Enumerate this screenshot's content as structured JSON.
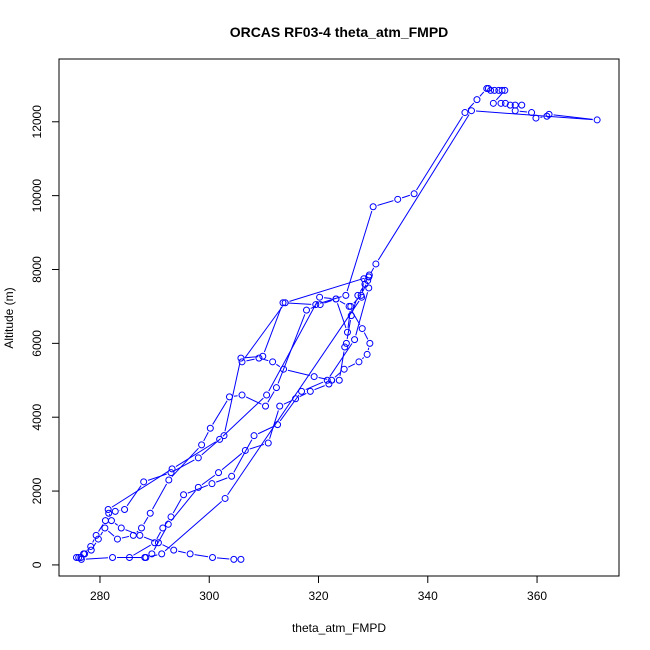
{
  "chart_data": {
    "type": "line",
    "title": "ORCAS RF03-4 theta_atm_FMPD",
    "xlabel": "theta_atm_FMPD",
    "ylabel": "Altitude (m)",
    "xlim": [
      272.5,
      375
    ],
    "ylim": [
      -300,
      13700
    ],
    "x_ticks": [
      280,
      300,
      320,
      340,
      360
    ],
    "y_ticks": [
      0,
      2000,
      4000,
      6000,
      8000,
      10000,
      12000
    ],
    "grid": false,
    "series_color": "#0000ff",
    "marker": "open-circle",
    "x": [
      276.5,
      277.0,
      278.3,
      279.3,
      281.0,
      281.6,
      282.8,
      284.5,
      288.0,
      293.0,
      298.0,
      302.7,
      305.8,
      309.8,
      313.5,
      319.5,
      325.0,
      330.0,
      334.5,
      337.5,
      346.8,
      349.0,
      350.8,
      351.1,
      351.5,
      352.2,
      353.0,
      353.6,
      354.1,
      352.0,
      353.4,
      354.2,
      355.1,
      356.0,
      357.2,
      356.0,
      359.0,
      359.8,
      361.8,
      362.2,
      371.0,
      348.0,
      330.5,
      329.2,
      328.5,
      327.2,
      326.0,
      325.1,
      324.8,
      323.8,
      321.9,
      318.5,
      315.8,
      312.9,
      310.8,
      306.6,
      301.7,
      298.0,
      292.5,
      289.5,
      288.2,
      285.4,
      290.0,
      291.5,
      293.0,
      295.3,
      300.5,
      304.1,
      308.2,
      312.5,
      316.9,
      321.6,
      326.6,
      329.2,
      329.0,
      327.8,
      325.9,
      325.3,
      323.2,
      320.3,
      317.8,
      312.3,
      310.3,
      306.0,
      303.7,
      300.2,
      298.6,
      292.6,
      289.2,
      287.6,
      286.1,
      283.2,
      280.9,
      279.7,
      278.4,
      277.2,
      276.1,
      275.7,
      276.6,
      282.3,
      288.4,
      291.3,
      302.9,
      327.9,
      328.3,
      329.3,
      329.2,
      313.9,
      306.0,
      309.1,
      311.6,
      313.6,
      319.2,
      322.4,
      324.7,
      327.4,
      328.9,
      329.4,
      328.0,
      325.6,
      323.2,
      320.2,
      310.5,
      301.9,
      293.2,
      281.5,
      282.1,
      283.9,
      287.3,
      290.7,
      293.5,
      296.5,
      300.6,
      304.5,
      305.8
    ],
    "y": [
      200,
      300,
      500,
      800,
      1200,
      1400,
      1450,
      1500,
      2250,
      2500,
      2900,
      3500,
      5600,
      5650,
      7100,
      7050,
      7300,
      9700,
      9900,
      10050,
      12250,
      12600,
      12900,
      12900,
      12850,
      12850,
      12850,
      12850,
      12850,
      12500,
      12500,
      12500,
      12450,
      12450,
      12450,
      12300,
      12250,
      12100,
      12150,
      12200,
      12050,
      12300,
      8150,
      7800,
      7600,
      7300,
      6750,
      6000,
      5900,
      5000,
      4900,
      4700,
      4500,
      4300,
      3300,
      3100,
      2500,
      2100,
      1100,
      300,
      200,
      200,
      600,
      1000,
      1300,
      1900,
      2200,
      2400,
      3500,
      3800,
      4700,
      5000,
      6100,
      7500,
      7700,
      7300,
      7000,
      6300,
      7200,
      7050,
      6900,
      4800,
      4300,
      4600,
      4550,
      3700,
      3250,
      2300,
      1400,
      1000,
      800,
      700,
      1000,
      700,
      400,
      300,
      200,
      200,
      150,
      200,
      200,
      300,
      1800,
      7250,
      7750,
      7850,
      7800,
      7100,
      5500,
      5600,
      5500,
      5300,
      5100,
      5000,
      5300,
      5500,
      5700,
      6000,
      6400,
      7000,
      7200,
      7250,
      4600,
      3400,
      2600,
      1500,
      1200,
      1000,
      800,
      600,
      400,
      300,
      200,
      150,
      150
    ]
  }
}
